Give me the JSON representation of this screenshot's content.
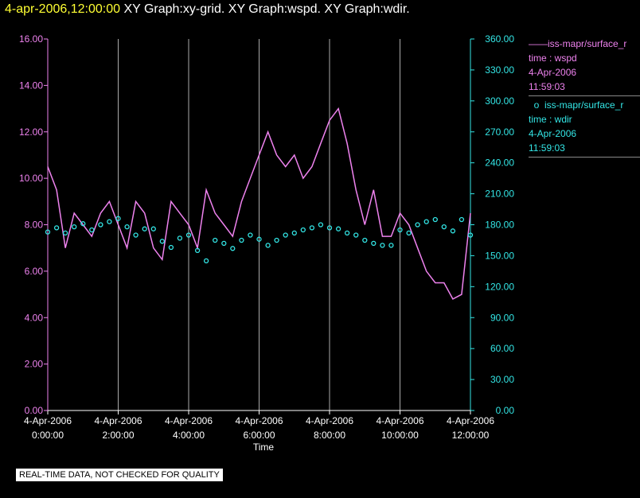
{
  "header": {
    "date": "4-apr-2006,12:00:00",
    "graphs": "XY Graph:xy-grid.  XY Graph:wspd.  XY Graph:wdir."
  },
  "legend": {
    "wspd": {
      "name": "iss-mapr/surface_r",
      "var": "time : wspd",
      "date": "4-Apr-2006",
      "time": "11:59:03"
    },
    "wdir": {
      "name": "iss-mapr/surface_r",
      "var": "time : wdir",
      "date": "4-Apr-2006",
      "time": "11:59:03"
    }
  },
  "disclaimer": "REAL-TIME DATA, NOT CHECKED FOR QUALITY",
  "colors": {
    "wspd": "#ee82ee",
    "wdir": "#33e6e6",
    "grid": "#aaaaaa",
    "header_date": "#ffff33"
  },
  "chart_data": {
    "type": "line",
    "xlabel": "Time",
    "x_range": [
      "4-Apr-2006 0:00:00",
      "4-Apr-2006 12:00:00"
    ],
    "x_tick_dates": [
      "4-Apr-2006",
      "4-Apr-2006",
      "4-Apr-2006",
      "4-Apr-2006",
      "4-Apr-2006",
      "4-Apr-2006",
      "4-Apr-2006"
    ],
    "x_tick_times": [
      "0:00:00",
      "2:00:00",
      "4:00:00",
      "6:00:00",
      "8:00:00",
      "10:00:00",
      "12:00:00"
    ],
    "grid": "vertical",
    "y_left": {
      "ticks": [
        "0.00",
        "2.00",
        "4.00",
        "6.00",
        "8.00",
        "10.00",
        "12.00",
        "14.00",
        "16.00"
      ],
      "range": [
        0,
        16
      ]
    },
    "y_right": {
      "ticks": [
        "0.00",
        "30.00",
        "60.00",
        "90.00",
        "120.00",
        "150.00",
        "180.00",
        "210.00",
        "240.00",
        "270.00",
        "300.00",
        "330.00",
        "360.00"
      ],
      "range": [
        0,
        360
      ]
    },
    "series": [
      {
        "name": "iss-mapr/surface_r",
        "axis": "left",
        "style": "line",
        "x": [
          "0:00",
          "0:15",
          "0:30",
          "0:45",
          "1:00",
          "1:15",
          "1:30",
          "1:45",
          "2:00",
          "2:15",
          "2:30",
          "2:45",
          "3:00",
          "3:15",
          "3:30",
          "3:45",
          "4:00",
          "4:15",
          "4:30",
          "4:45",
          "5:00",
          "5:15",
          "5:30",
          "5:45",
          "6:00",
          "6:15",
          "6:30",
          "6:45",
          "7:00",
          "7:15",
          "7:30",
          "7:45",
          "8:00",
          "8:15",
          "8:30",
          "8:45",
          "9:00",
          "9:15",
          "9:30",
          "9:45",
          "10:00",
          "10:15",
          "10:30",
          "10:45",
          "11:00",
          "11:15",
          "11:30",
          "11:45",
          "12:00"
        ],
        "y": [
          10.5,
          9.5,
          7.0,
          8.5,
          8.0,
          7.5,
          8.5,
          9.0,
          8.0,
          7.0,
          9.0,
          8.5,
          7.0,
          6.5,
          9.0,
          8.5,
          8.0,
          7.0,
          9.5,
          8.5,
          8.0,
          7.5,
          9.0,
          10.0,
          11.0,
          12.0,
          11.0,
          10.5,
          11.0,
          10.0,
          10.5,
          11.5,
          12.5,
          13.0,
          11.5,
          9.5,
          8.0,
          9.5,
          7.5,
          7.5,
          8.5,
          8.0,
          7.0,
          6.0,
          5.5,
          5.5,
          4.8,
          5.0,
          8.5
        ]
      },
      {
        "name": "iss-mapr/surface_r",
        "axis": "right",
        "style": "markers",
        "x": [
          "0:00",
          "0:15",
          "0:30",
          "0:45",
          "1:00",
          "1:15",
          "1:30",
          "1:45",
          "2:00",
          "2:15",
          "2:30",
          "2:45",
          "3:00",
          "3:15",
          "3:30",
          "3:45",
          "4:00",
          "4:15",
          "4:30",
          "4:45",
          "5:00",
          "5:15",
          "5:30",
          "5:45",
          "6:00",
          "6:15",
          "6:30",
          "6:45",
          "7:00",
          "7:15",
          "7:30",
          "7:45",
          "8:00",
          "8:15",
          "8:30",
          "8:45",
          "9:00",
          "9:15",
          "9:30",
          "9:45",
          "10:00",
          "10:15",
          "10:30",
          "10:45",
          "11:00",
          "11:15",
          "11:30",
          "11:45",
          "12:00"
        ],
        "y": [
          173,
          177,
          172,
          178,
          181,
          175,
          180,
          183,
          186,
          178,
          170,
          176,
          176,
          164,
          158,
          167,
          170,
          155,
          145,
          165,
          162,
          157,
          165,
          170,
          166,
          160,
          165,
          170,
          172,
          175,
          177,
          180,
          177,
          176,
          172,
          170,
          165,
          162,
          160,
          160,
          175,
          172,
          180,
          183,
          185,
          178,
          174,
          185,
          170
        ]
      }
    ]
  }
}
